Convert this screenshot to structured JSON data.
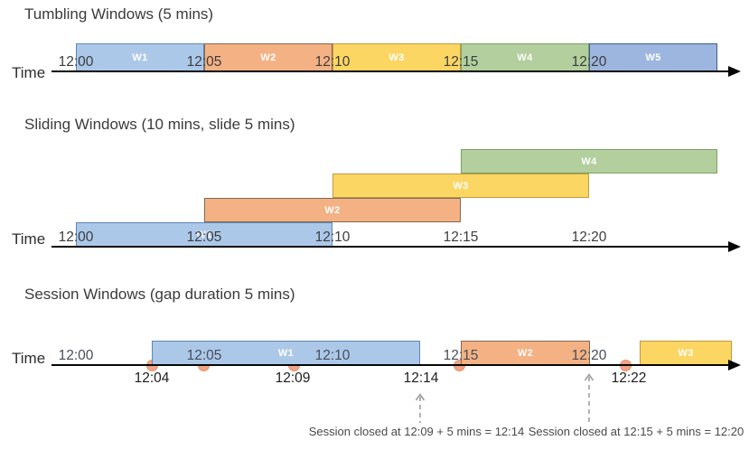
{
  "palette": {
    "blue": {
      "fill": "#ACC8E9",
      "border": "#5E86B4"
    },
    "orange": {
      "fill": "#F4B183",
      "border": "#7E6A55"
    },
    "yellow": {
      "fill": "#FBD663",
      "border": "#BF9B40"
    },
    "green": {
      "fill": "#B2CF9D",
      "border": "#7DA163"
    },
    "blue2": {
      "fill": "#9DB6DF",
      "border": "#3F5C8E"
    },
    "event_dot": {
      "fill": "#F0A585",
      "border": "#E69272"
    },
    "axis": "#060606",
    "dashed_arrow": "#9E9E9E",
    "window_label_text": "#FFFFFF"
  },
  "sections": [
    {
      "id": "tumbling",
      "title": "Tumbling Windows (5 mins)",
      "time_label": "Time",
      "ticks": [
        "12:00",
        "12:05",
        "12:10",
        "12:15",
        "12:20"
      ],
      "windows": [
        {
          "label": "W1",
          "color": "blue",
          "start": "12:00",
          "end": "12:05"
        },
        {
          "label": "W2",
          "color": "orange",
          "start": "12:05",
          "end": "12:10"
        },
        {
          "label": "W3",
          "color": "yellow",
          "start": "12:10",
          "end": "12:15"
        },
        {
          "label": "W4",
          "color": "green",
          "start": "12:15",
          "end": "12:20"
        },
        {
          "label": "W5",
          "color": "blue2",
          "start": "12:20",
          "end": ""
        }
      ]
    },
    {
      "id": "sliding",
      "title": "Sliding Windows (10 mins, slide 5 mins)",
      "time_label": "Time",
      "ticks": [
        "12:00",
        "12:05",
        "12:10",
        "12:15",
        "12:20"
      ],
      "windows": [
        {
          "label": "W1",
          "color": "blue",
          "start": "12:00",
          "end": "12:10"
        },
        {
          "label": "W2",
          "color": "orange",
          "start": "12:05",
          "end": "12:15"
        },
        {
          "label": "W3",
          "color": "yellow",
          "start": "12:10",
          "end": "12:20"
        },
        {
          "label": "W4",
          "color": "green",
          "start": "12:15",
          "end": ""
        }
      ]
    },
    {
      "id": "session",
      "title": "Session Windows (gap duration 5 mins)",
      "time_label": "Time",
      "ticks": [
        "12:00",
        "12:05",
        "12:10",
        "12:15",
        "12:20"
      ],
      "windows": [
        {
          "label": "W1",
          "color": "blue",
          "start": "12:04",
          "end": "12:14"
        },
        {
          "label": "W2",
          "color": "orange",
          "start": "12:15",
          "end": "12:20"
        },
        {
          "label": "W3",
          "color": "yellow",
          "start": "12:22",
          "end": ""
        }
      ],
      "event_labels": [
        "12:04",
        "12:09",
        "12:14",
        "12:22"
      ],
      "annotations": [
        "Session closed at 12:09 + 5 mins = 12:14",
        "Session closed at 12:15 + 5 mins = 12:20"
      ]
    }
  ]
}
